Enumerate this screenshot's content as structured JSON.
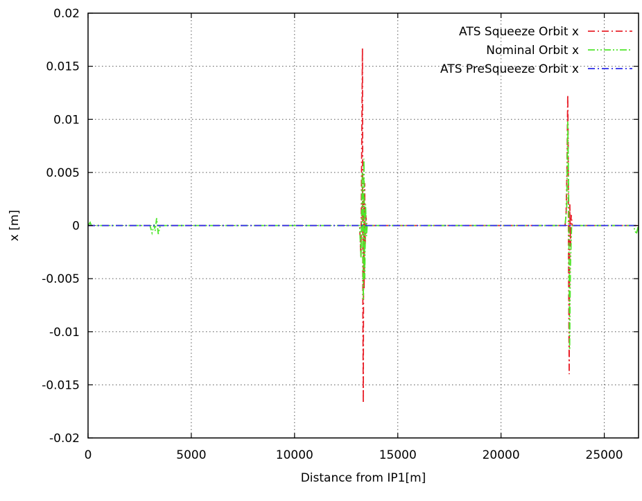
{
  "chart_data": {
    "type": "line",
    "xlabel": "Distance from IP1[m]",
    "ylabel": "x [m]",
    "xlim": [
      0,
      26659
    ],
    "ylim": [
      -0.02,
      0.02
    ],
    "x_ticks": [
      0,
      5000,
      10000,
      15000,
      20000,
      25000
    ],
    "x_tick_labels": [
      "0",
      "5000",
      "10000",
      "15000",
      "20000",
      "25000"
    ],
    "y_ticks": [
      -0.02,
      -0.015,
      -0.01,
      -0.005,
      0,
      0.005,
      0.01,
      0.015,
      0.02
    ],
    "y_tick_labels": [
      "-0.02",
      "-0.015",
      "-0.01",
      "-0.005",
      "0",
      "0.005",
      "0.01",
      "0.015",
      "0.02"
    ],
    "grid": true,
    "legend_position": "top-right",
    "series": [
      {
        "name": "ATS Squeeze Orbit x",
        "color": "#e8202a",
        "dash": "dash-dot",
        "x": [
          0,
          13150,
          13220,
          13250,
          13290,
          13310,
          13330,
          13350,
          13370,
          13395,
          13420,
          13450,
          13500,
          23100,
          23150,
          23190,
          23230,
          23250,
          23270,
          23300,
          23330,
          23370,
          23400,
          23450,
          26659
        ],
        "y": [
          0,
          0,
          -0.003,
          0.006,
          0.0167,
          -0.008,
          -0.0167,
          0.003,
          -0.006,
          0.004,
          -0.002,
          0.001,
          0,
          0,
          0.001,
          0.005,
          0.0123,
          0.008,
          -0.004,
          -0.014,
          0.002,
          -0.002,
          0.001,
          0,
          0
        ]
      },
      {
        "name": "Nominal Orbit x",
        "color": "#4ee62a",
        "dash": "dash-dot-dot",
        "x": [
          0,
          100,
          160,
          3000,
          3100,
          3200,
          3250,
          3320,
          3400,
          3500,
          13150,
          13220,
          13280,
          13330,
          13360,
          13400,
          13440,
          13480,
          13520,
          23100,
          23180,
          23230,
          23270,
          23320,
          23360,
          23420,
          26400,
          26550,
          26659
        ],
        "y": [
          0,
          0.0003,
          0,
          0,
          -0.0007,
          0.0001,
          -0.0005,
          0.0007,
          -0.0008,
          0,
          0,
          -0.003,
          0.005,
          -0.007,
          0.0063,
          -0.005,
          0.002,
          -0.001,
          0,
          0,
          0.0017,
          0.0098,
          0.004,
          -0.0117,
          -0.004,
          0,
          0,
          -0.0008,
          0
        ]
      },
      {
        "name": "ATS PreSqueeze Orbit x",
        "color": "#2a2ae8",
        "dash": "dash-dot",
        "x": [
          0,
          26659
        ],
        "y": [
          0,
          0
        ]
      }
    ]
  }
}
